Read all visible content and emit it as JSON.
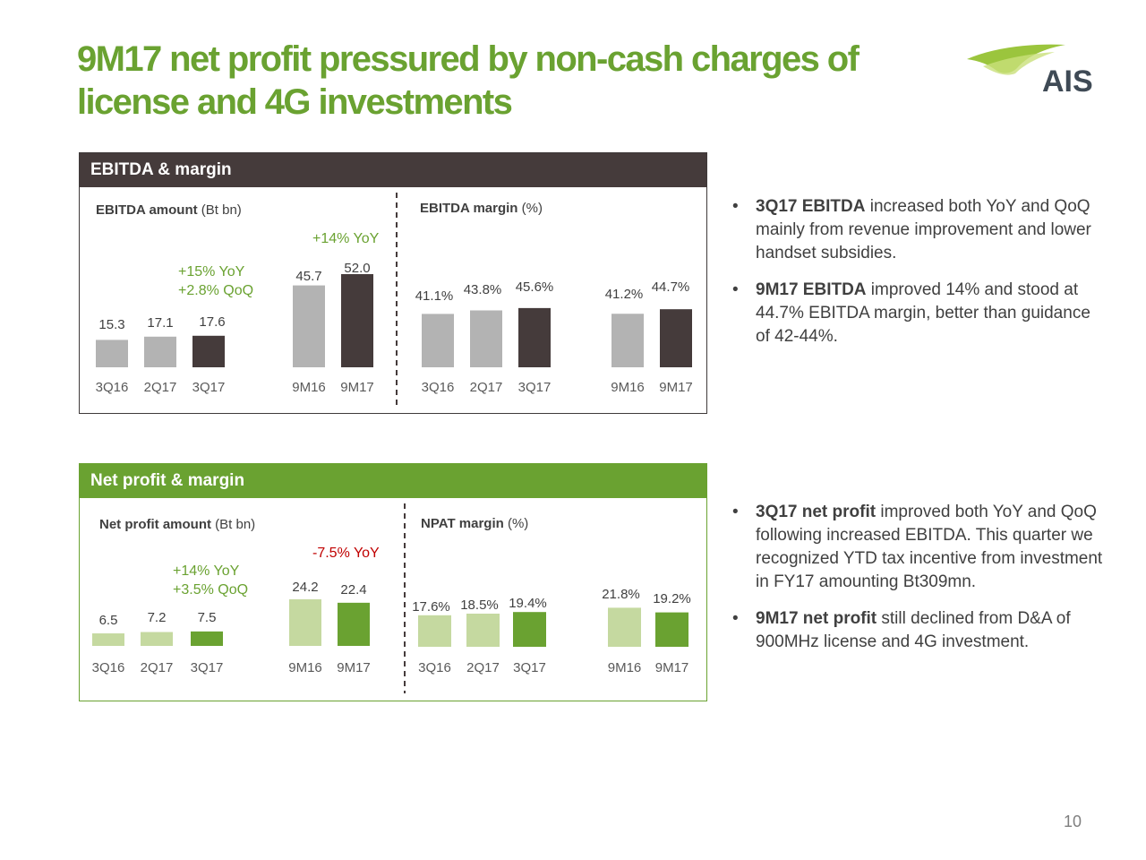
{
  "slide": {
    "title": "9M17 net profit pressured by non-cash charges of license and 4G investments",
    "logo_text": "AIS",
    "page_number": "10"
  },
  "colors": {
    "title_green": "#6aa231",
    "dark_brown": "#453b3b",
    "grey_bar": "#b3b3b3",
    "light_green": "#c5d9a0",
    "dark_green": "#6aa231",
    "red_text": "#c00000"
  },
  "panels": {
    "ebitda": {
      "header": "EBITDA & margin"
    },
    "net_profit": {
      "header": "Net profit & margin"
    }
  },
  "chart_data": [
    {
      "type": "bar",
      "title_bold": "EBITDA amount",
      "title_unit": "(Bt bn)",
      "groups": [
        {
          "categories": [
            "3Q16",
            "2Q17",
            "3Q17"
          ],
          "values": [
            15.3,
            17.1,
            17.6
          ],
          "value_labels": [
            "15.3",
            "17.1",
            "17.6"
          ]
        },
        {
          "categories": [
            "9M16",
            "9M17"
          ],
          "values": [
            45.7,
            52.0
          ],
          "value_labels": [
            "45.7",
            "52.0"
          ]
        }
      ],
      "annotations": [
        {
          "text": "+15% YoY",
          "color": "#6aa231"
        },
        {
          "text": "+2.8% QoQ",
          "color": "#6aa231"
        },
        {
          "text": "+14% YoY",
          "color": "#6aa231"
        }
      ]
    },
    {
      "type": "bar",
      "title_bold": "EBITDA margin",
      "title_unit": "(%)",
      "groups": [
        {
          "categories": [
            "3Q16",
            "2Q17",
            "3Q17"
          ],
          "values": [
            41.1,
            43.8,
            45.6
          ],
          "value_labels": [
            "41.1%",
            "43.8%",
            "45.6%"
          ]
        },
        {
          "categories": [
            "9M16",
            "9M17"
          ],
          "values": [
            41.2,
            44.7
          ],
          "value_labels": [
            "41.2%",
            "44.7%"
          ]
        }
      ]
    },
    {
      "type": "bar",
      "title_bold": "Net profit amount",
      "title_unit": "(Bt bn)",
      "groups": [
        {
          "categories": [
            "3Q16",
            "2Q17",
            "3Q17"
          ],
          "values": [
            6.5,
            7.2,
            7.5
          ],
          "value_labels": [
            "6.5",
            "7.2",
            "7.5"
          ]
        },
        {
          "categories": [
            "9M16",
            "9M17"
          ],
          "values": [
            24.2,
            22.4
          ],
          "value_labels": [
            "24.2",
            "22.4"
          ]
        }
      ],
      "annotations": [
        {
          "text": "+14% YoY",
          "color": "#6aa231"
        },
        {
          "text": "+3.5% QoQ",
          "color": "#6aa231"
        },
        {
          "text": "-7.5% YoY",
          "color": "#c00000"
        }
      ]
    },
    {
      "type": "bar",
      "title_bold": "NPAT margin",
      "title_unit": "(%)",
      "groups": [
        {
          "categories": [
            "3Q16",
            "2Q17",
            "3Q17"
          ],
          "values": [
            17.6,
            18.5,
            19.4
          ],
          "value_labels": [
            "17.6%",
            "18.5%",
            "19.4%"
          ]
        },
        {
          "categories": [
            "9M16",
            "9M17"
          ],
          "values": [
            21.8,
            19.2
          ],
          "value_labels": [
            "21.8%",
            "19.2%"
          ]
        }
      ]
    }
  ],
  "bullets_ebitda": [
    {
      "bold": "3Q17 EBITDA",
      "text": " increased both YoY and QoQ mainly from revenue improvement and lower handset subsidies."
    },
    {
      "bold": "9M17 EBITDA",
      "text": " improved 14% and stood at 44.7% EBITDA margin, better than guidance of 42-44%."
    }
  ],
  "bullets_netprofit": [
    {
      "bold": "3Q17 net profit",
      "text": " improved both YoY and QoQ following increased EBITDA. This quarter we recognized YTD tax incentive from investment in FY17 amounting Bt309mn."
    },
    {
      "bold": "9M17 net profit",
      "text": " still declined from D&A of 900MHz license and 4G investment."
    }
  ]
}
